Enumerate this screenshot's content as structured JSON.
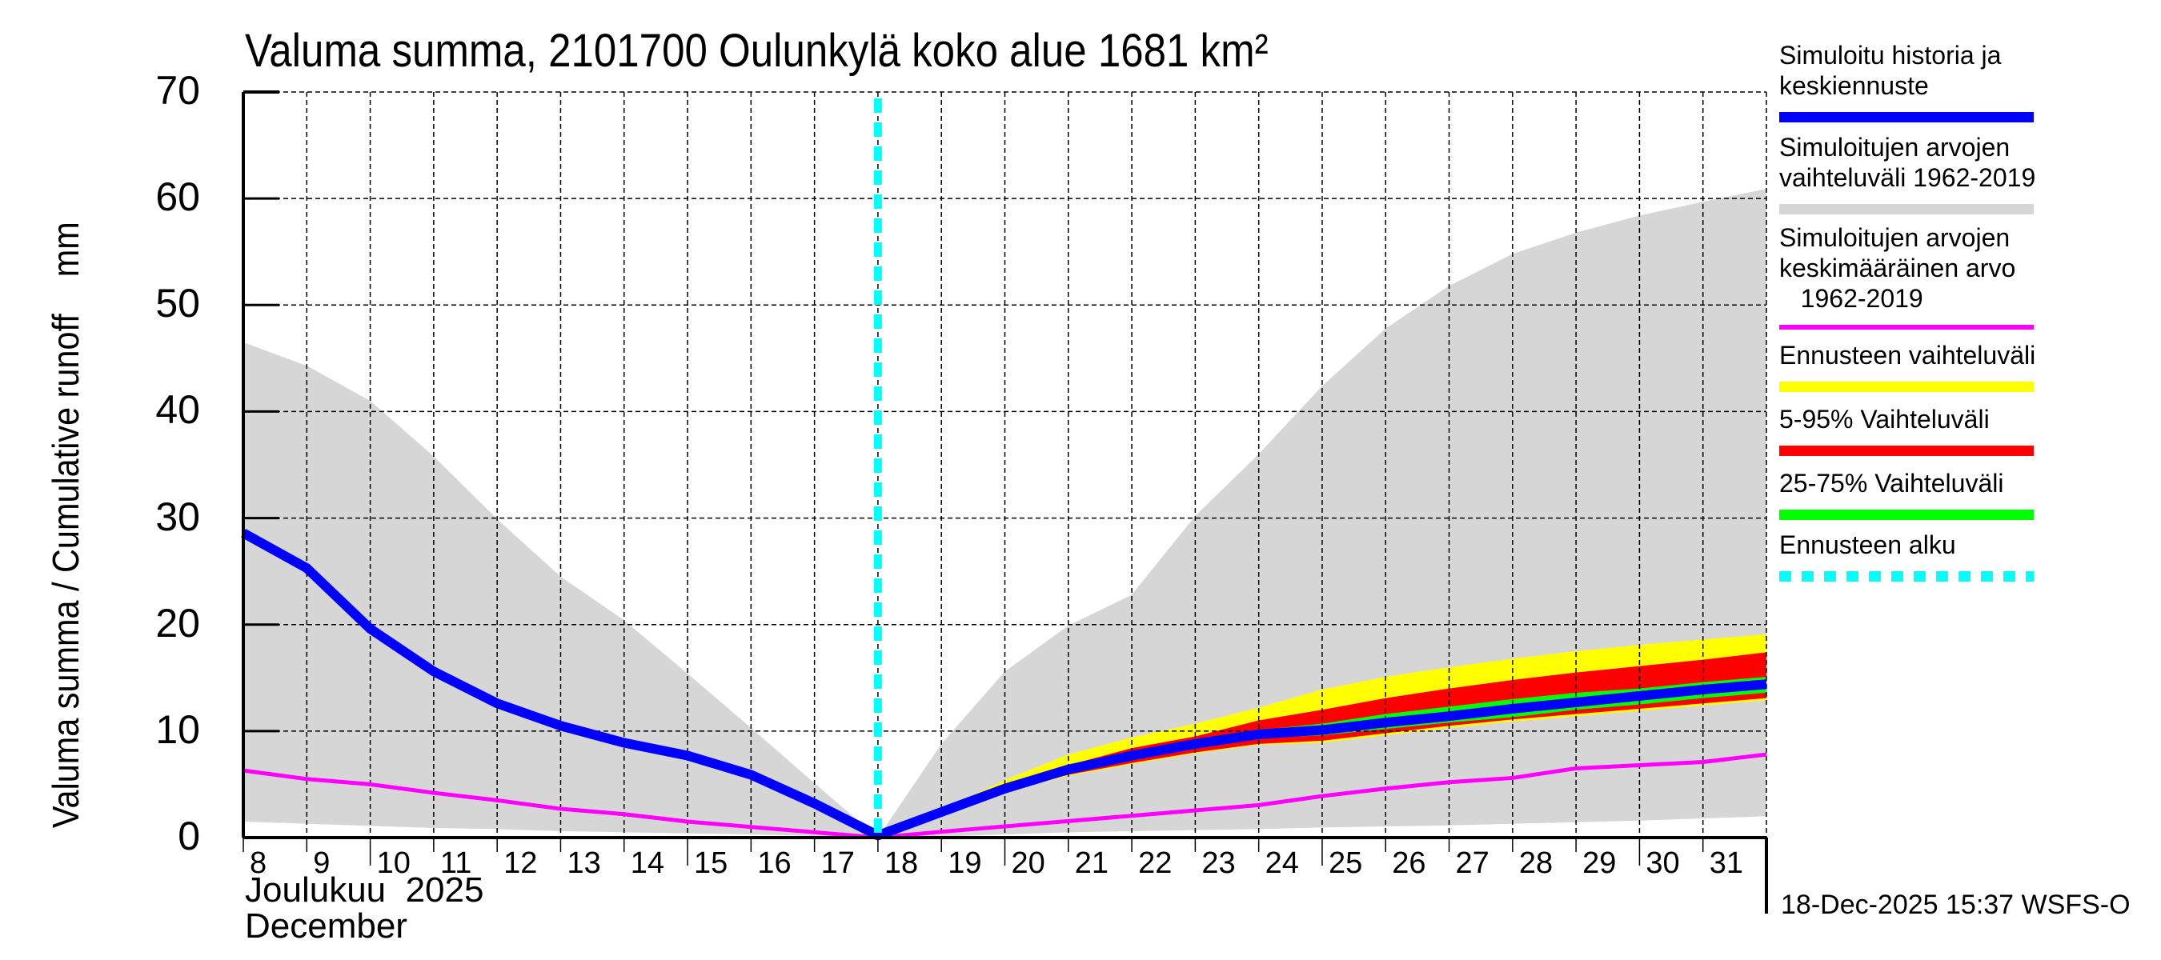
{
  "chart_data": {
    "type": "area",
    "title": "Valuma summa, 2101700 Oulunkylä koko alue 1681 km²",
    "ylabel": "Valuma summa / Cumulative runoff    mm",
    "xlabel_line1": "Joulukuu  2025",
    "xlabel_line2": "December",
    "ylim": [
      0,
      70
    ],
    "xlim": [
      8,
      32
    ],
    "yticks": [
      "0",
      "10",
      "20",
      "30",
      "40",
      "50",
      "60",
      "70"
    ],
    "ytick_values": [
      0,
      10,
      20,
      30,
      40,
      50,
      60,
      70
    ],
    "xticks": [
      "8",
      "9",
      "10",
      "11",
      "12",
      "13",
      "14",
      "15",
      "16",
      "17",
      "18",
      "19",
      "20",
      "21",
      "22",
      "23",
      "24",
      "25",
      "26",
      "27",
      "28",
      "29",
      "30",
      "31"
    ],
    "grid": true,
    "forecast_start_day": 18,
    "timestamp": "18-Dec-2025 15:37 WSFS-O",
    "series": [
      {
        "name": "Simuloitujen arvojen vaihteluväli 1962-2019",
        "kind": "band",
        "color": "#d6d6d6",
        "x": [
          8,
          9,
          10,
          11,
          12,
          13,
          14,
          15,
          16,
          17,
          18,
          19,
          20,
          21,
          22,
          23,
          24,
          25,
          26,
          27,
          28,
          29,
          30,
          31,
          32
        ],
        "upper": [
          46.5,
          44.3,
          41.0,
          35.8,
          29.9,
          24.5,
          20.4,
          15.4,
          10.3,
          5.1,
          0.0,
          8.8,
          15.6,
          19.9,
          22.8,
          30.2,
          36.0,
          42.4,
          47.8,
          51.8,
          54.8,
          56.8,
          58.4,
          59.7,
          60.9
        ],
        "lower": [
          1.5,
          1.3,
          1.1,
          0.9,
          0.8,
          0.6,
          0.5,
          0.4,
          0.3,
          0.15,
          0.0,
          0.1,
          0.3,
          0.5,
          0.6,
          0.7,
          0.8,
          0.95,
          1.05,
          1.15,
          1.3,
          1.45,
          1.6,
          1.8,
          2.0
        ]
      },
      {
        "name": "Ennusteen vaihteluväli",
        "kind": "band",
        "color": "#ffff00",
        "x": [
          18,
          19,
          20,
          21,
          22,
          23,
          24,
          25,
          26,
          27,
          28,
          29,
          30,
          31,
          32
        ],
        "upper": [
          0.0,
          2.6,
          5.4,
          7.8,
          9.4,
          10.7,
          12.2,
          13.9,
          15.1,
          16.0,
          16.8,
          17.5,
          18.1,
          18.6,
          19.1
        ],
        "lower": [
          0.0,
          2.3,
          4.3,
          5.8,
          6.9,
          7.9,
          8.7,
          8.9,
          9.6,
          10.3,
          10.9,
          11.4,
          11.9,
          12.4,
          12.9
        ]
      },
      {
        "name": "5-95% Vaihteluväli",
        "kind": "band",
        "color": "#ff0000",
        "x": [
          18,
          19,
          20,
          21,
          22,
          23,
          24,
          25,
          26,
          27,
          28,
          29,
          30,
          31,
          32
        ],
        "upper": [
          0.0,
          2.5,
          4.9,
          6.8,
          8.4,
          9.5,
          11.0,
          12.0,
          13.1,
          14.0,
          14.8,
          15.5,
          16.1,
          16.7,
          17.4
        ],
        "lower": [
          0.0,
          2.3,
          4.4,
          5.9,
          7.0,
          8.0,
          8.8,
          9.1,
          9.8,
          10.5,
          11.1,
          11.6,
          12.1,
          12.6,
          13.1
        ]
      },
      {
        "name": "25-75% Vaihteluväli",
        "kind": "band",
        "color": "#00ff00",
        "x": [
          18,
          19,
          20,
          21,
          22,
          23,
          24,
          25,
          26,
          27,
          28,
          29,
          30,
          31,
          32
        ],
        "upper": [
          0.0,
          2.45,
          4.7,
          6.6,
          8.0,
          9.1,
          10.1,
          10.7,
          11.6,
          12.3,
          13.0,
          13.6,
          14.0,
          14.6,
          15.1
        ],
        "lower": [
          0.0,
          2.35,
          4.5,
          6.2,
          7.4,
          8.5,
          9.3,
          9.6,
          10.2,
          10.8,
          11.3,
          12.0,
          12.5,
          13.1,
          13.6
        ]
      },
      {
        "name": "Simuloitujen arvojen keskimääräinen arvo 1962-2019",
        "kind": "line",
        "color": "#ff00ff",
        "x": [
          8,
          9,
          10,
          11,
          12,
          13,
          14,
          15,
          16,
          17,
          18,
          19,
          20,
          21,
          22,
          23,
          24,
          25,
          26,
          27,
          28,
          29,
          30,
          31,
          32
        ],
        "values": [
          6.3,
          5.5,
          5.0,
          4.2,
          3.5,
          2.7,
          2.2,
          1.5,
          1.0,
          0.5,
          0.0,
          0.55,
          1.05,
          1.55,
          2.05,
          2.55,
          3.05,
          3.9,
          4.6,
          5.2,
          5.6,
          6.5,
          6.8,
          7.1,
          7.8
        ]
      },
      {
        "name": "Simuloitu historia ja keskiennuste",
        "kind": "line",
        "color": "#0000ff",
        "x": [
          8,
          9,
          10,
          11,
          12,
          13,
          14,
          15,
          16,
          17,
          18,
          19,
          20,
          21,
          22,
          23,
          24,
          25,
          26,
          27,
          28,
          29,
          30,
          31,
          32
        ],
        "values": [
          28.6,
          25.3,
          19.6,
          15.6,
          12.6,
          10.5,
          8.9,
          7.7,
          5.9,
          3.2,
          0.2,
          2.4,
          4.6,
          6.4,
          7.7,
          8.8,
          9.7,
          10.1,
          10.8,
          11.4,
          12.1,
          12.7,
          13.3,
          13.9,
          14.4
        ]
      }
    ]
  },
  "legend": {
    "items": [
      {
        "label": "Simuloitu historia ja\nkeskiennuste",
        "color": "#0000ff",
        "style": "solid"
      },
      {
        "label": "Simuloitujen arvojen\nvaihteluväli 1962-2019",
        "color": "#d6d6d6",
        "style": "solid"
      },
      {
        "label": "Simuloitujen arvojen\nkeskimääräinen arvo\n   1962-2019",
        "color": "#ff00ff",
        "style": "thin"
      },
      {
        "label": "Ennusteen vaihteluväli",
        "color": "#ffff00",
        "style": "solid"
      },
      {
        "label": "5-95% Vaihteluväli",
        "color": "#ff0000",
        "style": "solid"
      },
      {
        "label": "25-75% Vaihteluväli",
        "color": "#00ff00",
        "style": "solid"
      },
      {
        "label": "Ennusteen alku",
        "color": "#00ffff",
        "style": "dashed"
      }
    ]
  }
}
